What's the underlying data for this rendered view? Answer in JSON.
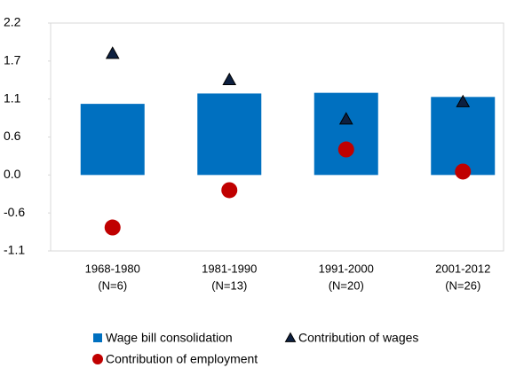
{
  "chart_data": {
    "type": "bar",
    "categories": [
      [
        "1968-1980",
        "(N=6)"
      ],
      [
        "1981-1990",
        "(N=13)"
      ],
      [
        "1991-2000",
        "(N=20)"
      ],
      [
        "2001-2012",
        "(N=26)"
      ]
    ],
    "series": [
      {
        "name": "Wage bill consolidation",
        "marker": "bar",
        "color": "#0070c0",
        "values": [
          1.03,
          1.18,
          1.19,
          1.13
        ]
      },
      {
        "name": "Contribution of wages",
        "marker": "triangle",
        "color": "#0d2040",
        "values": [
          1.76,
          1.38,
          0.81,
          1.06
        ]
      },
      {
        "name": "Contribution of employment",
        "marker": "circle",
        "color": "#c00000",
        "values": [
          -0.76,
          -0.22,
          0.37,
          0.05
        ]
      }
    ],
    "ylim": [
      -1.1,
      2.2
    ],
    "yticks": [
      -1.1,
      {
        "value": -0.55,
        "label": "-0.6"
      },
      {
        "value": 0,
        "label": "0.0"
      },
      {
        "value": 0.55,
        "label": "0.6"
      },
      1.1,
      {
        "value": 1.65,
        "label": "1.7"
      },
      2.2
    ],
    "grid": false
  }
}
